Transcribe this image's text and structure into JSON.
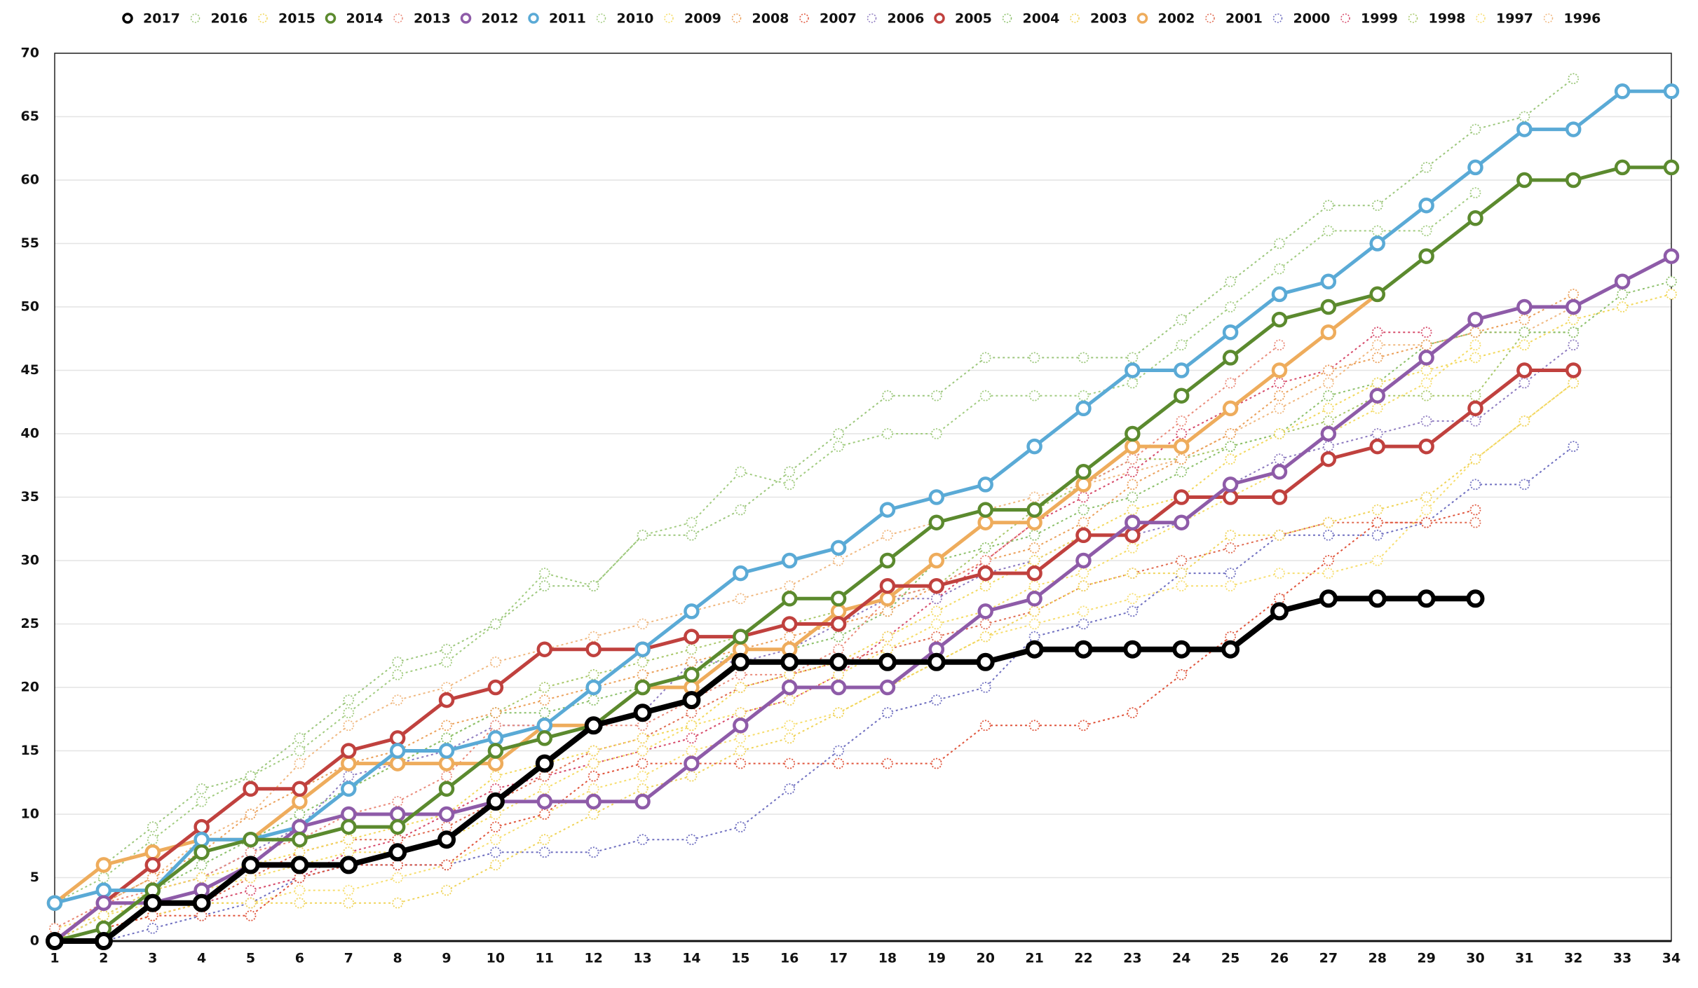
{
  "chart_data": {
    "type": "line",
    "categories": [
      1,
      2,
      3,
      4,
      5,
      6,
      7,
      8,
      9,
      10,
      11,
      12,
      13,
      14,
      15,
      16,
      17,
      18,
      19,
      20,
      21,
      22,
      23,
      24,
      25,
      26,
      27,
      28,
      29,
      30,
      31,
      32,
      33,
      34
    ],
    "ylim": [
      0,
      70
    ],
    "yticks": [
      0,
      5,
      10,
      15,
      20,
      25,
      30,
      35,
      40,
      45,
      50,
      55,
      60,
      65,
      70
    ],
    "grid": true,
    "legend": "top",
    "series": [
      {
        "name": "2017",
        "color": "#000000",
        "line_style": "bold",
        "values": [
          0,
          0,
          3,
          3,
          6,
          6,
          6,
          7,
          8,
          11,
          14,
          17,
          18,
          19,
          22,
          22,
          22,
          22,
          22,
          22,
          23,
          23,
          23,
          23,
          23,
          26,
          27,
          27,
          27,
          27,
          null,
          null,
          null,
          null
        ]
      },
      {
        "name": "2016",
        "color": "#9cc77c",
        "line_style": "dotted",
        "values": [
          3,
          6,
          9,
          12,
          13,
          16,
          19,
          22,
          23,
          25,
          28,
          28,
          32,
          32,
          34,
          37,
          40,
          43,
          43,
          46,
          46,
          46,
          46,
          49,
          52,
          55,
          58,
          58,
          61,
          64,
          65,
          68,
          null,
          null
        ]
      },
      {
        "name": "2015",
        "color": "#f2d85c",
        "line_style": "dotted",
        "values": [
          0,
          2,
          4,
          5,
          6,
          7,
          8,
          9,
          10,
          13,
          14,
          15,
          16,
          17,
          20,
          21,
          22,
          24,
          26,
          28,
          30,
          32,
          34,
          35,
          38,
          40,
          42,
          44,
          45,
          46,
          47,
          49,
          50,
          51
        ]
      },
      {
        "name": "2014",
        "color": "#5b8a2e",
        "line_style": "solid",
        "values": [
          0,
          1,
          4,
          7,
          8,
          8,
          9,
          9,
          12,
          15,
          16,
          17,
          20,
          21,
          24,
          27,
          27,
          30,
          33,
          34,
          34,
          37,
          40,
          43,
          46,
          49,
          50,
          51,
          54,
          57,
          60,
          60,
          61,
          61
        ]
      },
      {
        "name": "2013",
        "color": "#ea8b7b",
        "line_style": "dotted",
        "values": [
          1,
          3,
          4,
          5,
          7,
          8,
          10,
          11,
          13,
          17,
          17,
          17,
          17,
          19,
          21,
          21,
          23,
          27,
          28,
          30,
          33,
          36,
          38,
          41,
          44,
          47,
          null,
          null,
          null,
          null,
          null,
          null,
          null,
          null
        ]
      },
      {
        "name": "2012",
        "color": "#8e5ba8",
        "line_style": "solid",
        "values": [
          0,
          3,
          3,
          4,
          6,
          9,
          10,
          10,
          10,
          11,
          11,
          11,
          11,
          14,
          17,
          20,
          20,
          20,
          23,
          26,
          27,
          30,
          33,
          33,
          36,
          37,
          40,
          43,
          46,
          49,
          50,
          50,
          52,
          54
        ]
      },
      {
        "name": "2011",
        "color": "#5aaad6",
        "line_style": "solid",
        "values": [
          3,
          4,
          4,
          8,
          8,
          9,
          12,
          15,
          15,
          16,
          17,
          20,
          23,
          26,
          29,
          30,
          31,
          34,
          35,
          36,
          39,
          42,
          45,
          45,
          48,
          51,
          52,
          55,
          58,
          61,
          64,
          64,
          67,
          67
        ]
      },
      {
        "name": "2010",
        "color": "#a2cc80",
        "line_style": "dotted",
        "values": [
          3,
          5,
          8,
          11,
          13,
          15,
          18,
          21,
          22,
          25,
          29,
          28,
          32,
          33,
          37,
          36,
          39,
          40,
          40,
          43,
          43,
          43,
          44,
          47,
          50,
          53,
          56,
          56,
          56,
          59,
          null,
          null,
          null,
          null
        ]
      },
      {
        "name": "2009",
        "color": "#f5dc66",
        "line_style": "dotted",
        "values": [
          1,
          2,
          3,
          4,
          5,
          6,
          7,
          7,
          8,
          10,
          12,
          14,
          15,
          17,
          18,
          19,
          21,
          23,
          25,
          26,
          28,
          29,
          31,
          33,
          35,
          37,
          40,
          42,
          44,
          47,
          null,
          null,
          null,
          null
        ]
      },
      {
        "name": "2008",
        "color": "#eba05a",
        "line_style": "dotted",
        "values": [
          0,
          3,
          5,
          7,
          10,
          12,
          14,
          15,
          17,
          18,
          19,
          20,
          21,
          22,
          23,
          24,
          25,
          26,
          28,
          30,
          31,
          33,
          36,
          38,
          40,
          43,
          45,
          46,
          47,
          48,
          49,
          51,
          null,
          null
        ]
      },
      {
        "name": "2007",
        "color": "#e0553c",
        "line_style": "dotted",
        "values": [
          0,
          1,
          2,
          2,
          2,
          5,
          6,
          6,
          6,
          9,
          10,
          13,
          14,
          14,
          14,
          14,
          14,
          14,
          14,
          17,
          17,
          17,
          18,
          21,
          24,
          27,
          30,
          33,
          33,
          34,
          null,
          null,
          null,
          null
        ]
      },
      {
        "name": "2006",
        "color": "#8e7bc0",
        "line_style": "dotted",
        "values": [
          0,
          2,
          4,
          5,
          7,
          9,
          13,
          14,
          15,
          17,
          17,
          17,
          18,
          22,
          22,
          23,
          25,
          27,
          27,
          29,
          30,
          32,
          32,
          33,
          36,
          38,
          39,
          40,
          41,
          41,
          44,
          47,
          null,
          null
        ]
      },
      {
        "name": "2005",
        "color": "#c0413e",
        "line_style": "solid",
        "values": [
          0,
          3,
          6,
          9,
          12,
          12,
          15,
          16,
          19,
          20,
          23,
          23,
          23,
          24,
          24,
          25,
          25,
          28,
          28,
          29,
          29,
          32,
          32,
          35,
          35,
          35,
          38,
          39,
          39,
          42,
          45,
          45,
          null,
          null
        ]
      },
      {
        "name": "2004",
        "color": "#8cc06a",
        "line_style": "dotted",
        "values": [
          0,
          2,
          4,
          6,
          8,
          10,
          12,
          14,
          16,
          18,
          18,
          19,
          20,
          21,
          23,
          23,
          24,
          26,
          30,
          31,
          32,
          34,
          35,
          37,
          39,
          40,
          43,
          44,
          47,
          48,
          48,
          48,
          51,
          52
        ]
      },
      {
        "name": "2003",
        "color": "#f0d45a",
        "line_style": "dotted",
        "values": [
          0,
          1,
          2,
          3,
          3,
          3,
          3,
          3,
          4,
          6,
          8,
          10,
          12,
          13,
          15,
          16,
          18,
          20,
          22,
          24,
          26,
          28,
          29,
          29,
          32,
          32,
          33,
          34,
          35,
          38,
          41,
          44,
          null,
          null
        ]
      },
      {
        "name": "2002",
        "color": "#eeac5c",
        "line_style": "solid",
        "values": [
          3,
          6,
          7,
          8,
          8,
          11,
          14,
          14,
          14,
          14,
          17,
          17,
          20,
          20,
          23,
          23,
          26,
          27,
          30,
          33,
          33,
          36,
          39,
          39,
          42,
          45,
          48,
          51,
          null,
          null,
          null,
          null,
          null,
          null
        ]
      },
      {
        "name": "2001",
        "color": "#e06a50",
        "line_style": "dotted",
        "values": [
          0,
          1,
          2,
          3,
          5,
          7,
          8,
          8,
          9,
          11,
          13,
          15,
          16,
          18,
          20,
          21,
          22,
          23,
          24,
          25,
          26,
          28,
          29,
          30,
          31,
          32,
          33,
          33,
          33,
          33,
          null,
          null,
          null,
          null
        ]
      },
      {
        "name": "2000",
        "color": "#6f6fc0",
        "line_style": "dotted",
        "values": [
          0,
          0,
          1,
          2,
          3,
          5,
          6,
          6,
          6,
          7,
          7,
          7,
          8,
          8,
          9,
          12,
          15,
          18,
          19,
          20,
          24,
          25,
          26,
          29,
          29,
          32,
          32,
          32,
          33,
          36,
          36,
          39,
          null,
          null
        ]
      },
      {
        "name": "1999",
        "color": "#d64a6a",
        "line_style": "dotted",
        "values": [
          0,
          1,
          2,
          3,
          4,
          5,
          7,
          8,
          10,
          12,
          13,
          14,
          15,
          16,
          18,
          19,
          21,
          24,
          27,
          30,
          33,
          35,
          37,
          40,
          42,
          44,
          45,
          48,
          48,
          null,
          null,
          null,
          null,
          null
        ]
      },
      {
        "name": "1998",
        "color": "#a8c86a",
        "line_style": "dotted",
        "values": [
          0,
          2,
          4,
          7,
          8,
          9,
          12,
          14,
          16,
          18,
          20,
          21,
          22,
          23,
          24,
          25,
          26,
          27,
          28,
          31,
          34,
          36,
          38,
          38,
          39,
          40,
          41,
          43,
          43,
          43,
          48,
          48,
          null,
          null
        ]
      },
      {
        "name": "1997",
        "color": "#f7de70",
        "line_style": "dotted",
        "values": [
          0,
          1,
          2,
          3,
          3,
          4,
          4,
          5,
          6,
          8,
          10,
          12,
          13,
          15,
          16,
          17,
          18,
          20,
          22,
          24,
          25,
          26,
          27,
          28,
          28,
          29,
          29,
          30,
          34,
          38,
          41,
          44,
          null,
          null
        ]
      },
      {
        "name": "1996",
        "color": "#f0b880",
        "line_style": "dotted",
        "values": [
          1,
          3,
          5,
          8,
          10,
          14,
          17,
          19,
          20,
          22,
          23,
          24,
          25,
          26,
          27,
          28,
          30,
          32,
          33,
          34,
          35,
          36,
          37,
          38,
          40,
          42,
          44,
          47,
          47,
          48,
          48,
          50,
          null,
          null
        ]
      }
    ]
  }
}
